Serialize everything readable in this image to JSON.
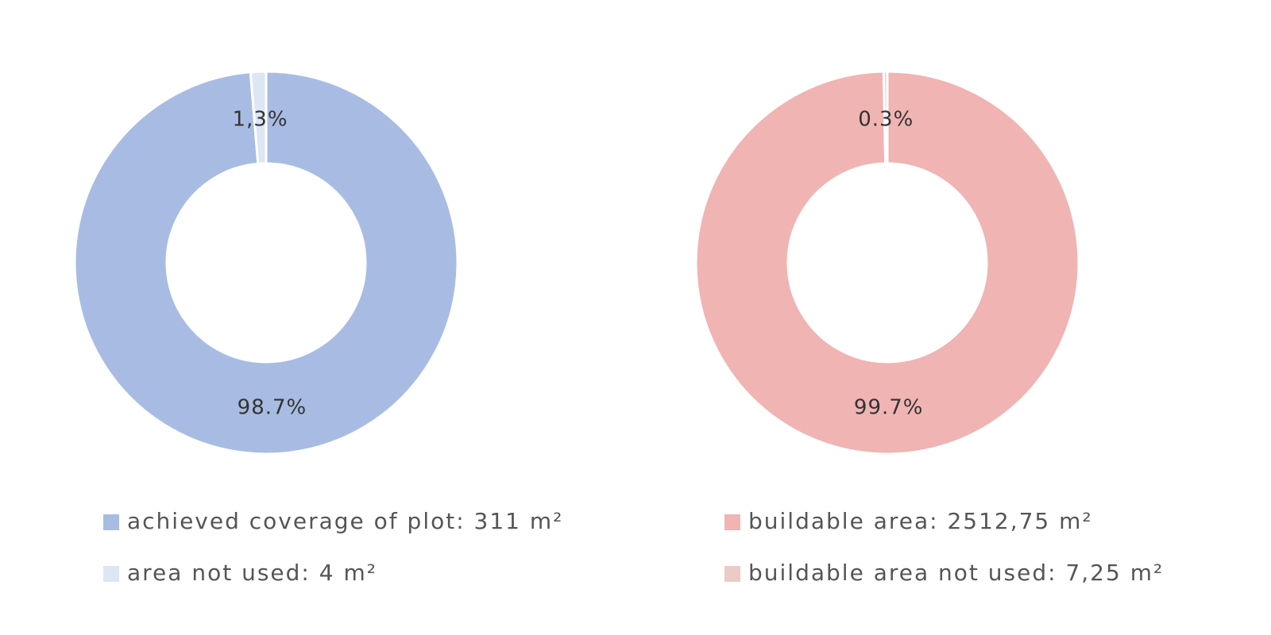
{
  "chart_data": [
    {
      "type": "pie",
      "donut": true,
      "categories": [
        "achieved coverage of plot: 311 m²",
        "area not used: 4 m²"
      ],
      "values": [
        98.7,
        1.3
      ],
      "value_labels": [
        "98.7%",
        "1,3%"
      ],
      "colors": [
        "#a8bce3",
        "#dde6f5"
      ]
    },
    {
      "type": "pie",
      "donut": true,
      "categories": [
        "buildable area: 2512,75 m²",
        "buildable area not used: 7,25 m²"
      ],
      "values": [
        99.7,
        0.3
      ],
      "value_labels": [
        "99.7%",
        "0.3%"
      ],
      "colors": [
        "#f0b4b3",
        "#eccac8"
      ]
    }
  ]
}
